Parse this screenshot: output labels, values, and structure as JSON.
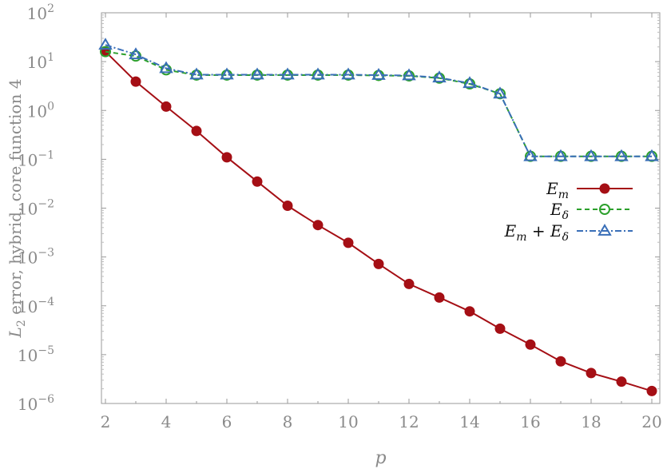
{
  "chart_data": {
    "type": "line",
    "title": "",
    "xlabel": "p",
    "ylabel": "L2 error, hybrid, core function 4",
    "yscale": "log",
    "xlim": [
      2,
      20
    ],
    "ylim": [
      1e-06,
      100
    ],
    "x_ticks": [
      2,
      4,
      6,
      8,
      10,
      12,
      14,
      16,
      18,
      20
    ],
    "y_ticks": [
      {
        "value": 1e-06,
        "base": "10",
        "exp": "−6"
      },
      {
        "value": 1e-05,
        "base": "10",
        "exp": "−5"
      },
      {
        "value": 0.0001,
        "base": "10",
        "exp": "−4"
      },
      {
        "value": 0.001,
        "base": "10",
        "exp": "−3"
      },
      {
        "value": 0.01,
        "base": "10",
        "exp": "−2"
      },
      {
        "value": 0.1,
        "base": "10",
        "exp": "−1"
      },
      {
        "value": 1,
        "base": "10",
        "exp": "0"
      },
      {
        "value": 10,
        "base": "10",
        "exp": "1"
      },
      {
        "value": 100,
        "base": "10",
        "exp": "2"
      }
    ],
    "grid": false,
    "legend_position": "right",
    "x": [
      2,
      3,
      4,
      5,
      6,
      7,
      8,
      9,
      10,
      11,
      12,
      13,
      14,
      15,
      16,
      17,
      18,
      19,
      20
    ],
    "series": [
      {
        "name": "E_m",
        "legend_main": "E",
        "legend_sub": "m",
        "color": "#a50f15",
        "style": "solid",
        "marker": "filled-circle",
        "values": [
          16,
          3.9,
          1.2,
          0.38,
          0.11,
          0.035,
          0.0112,
          0.0045,
          0.00195,
          0.00072,
          0.00028,
          0.000148,
          7.7e-05,
          3.4e-05,
          1.61e-05,
          7.3e-06,
          4.2e-06,
          2.8e-06,
          1.8e-06
        ]
      },
      {
        "name": "E_δ",
        "legend_main": "E",
        "legend_sub": "δ",
        "color": "#2ca02c",
        "style": "dashed",
        "marker": "open-circle",
        "values": [
          16,
          13,
          6.8,
          5.3,
          5.3,
          5.3,
          5.3,
          5.3,
          5.3,
          5.2,
          5.1,
          4.6,
          3.5,
          2.2,
          0.115,
          0.115,
          0.115,
          0.115,
          0.115
        ]
      },
      {
        "name": "E_m + E_δ",
        "legend_main": "E",
        "legend_sub": "m",
        "legend_plus": " + E",
        "legend_sub2": "δ",
        "color": "#3a6fb8",
        "style": "dashdot",
        "marker": "open-triangle",
        "values": [
          22,
          14,
          7.3,
          5.4,
          5.4,
          5.4,
          5.4,
          5.4,
          5.4,
          5.3,
          5.2,
          4.7,
          3.6,
          2.2,
          0.115,
          0.115,
          0.115,
          0.115,
          0.115
        ]
      }
    ]
  }
}
